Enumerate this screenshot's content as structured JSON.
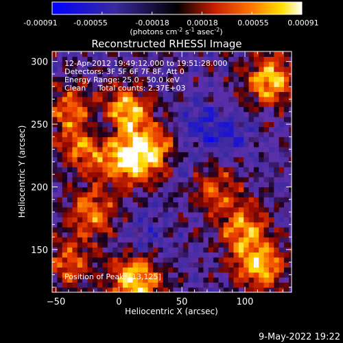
{
  "colorbar": {
    "ticks": [
      "-0.00091",
      "-0.00055",
      "-0.00018",
      "0.00018",
      "0.00055",
      "0.00091"
    ],
    "units_prefix": "(photons cm",
    "units_exp1": "-2",
    "units_mid": " s",
    "units_exp2": "-1",
    "units_mid2": " asec",
    "units_exp3": "-2",
    "units_suffix": ")",
    "min": -0.00091,
    "max": 0.00091
  },
  "plot": {
    "title": "Reconstructed RHESSI Image",
    "xlabel": "Heliocentric X (arcsec)",
    "ylabel": "Heliocentric Y (arcsec)",
    "annotations": [
      "12-Apr-2012 19:49:12.000 to 19:51:28.000",
      "Detectors: 3F 5F 6F 7F 8F, Att 0",
      "Energy Range: 25.0 - 50.0 keV",
      "Clean     Total counts: 2.37E+03"
    ],
    "peak_label": "Position of Peak: [13,125]"
  },
  "footer": {
    "date": "9-May-2022 19:22"
  },
  "chart_data": {
    "type": "heatmap",
    "title": "Reconstructed RHESSI Image",
    "xlabel": "Heliocentric X (arcsec)",
    "ylabel": "Heliocentric Y (arcsec)",
    "xlim": [
      -53,
      137
    ],
    "ylim": [
      116,
      308
    ],
    "xticks": [
      -50,
      0,
      50,
      100
    ],
    "yticks": [
      150,
      200,
      250,
      300
    ],
    "xtick_labels": [
      "−50",
      "0",
      "50",
      "100"
    ],
    "ytick_labels": [
      "150",
      "200",
      "250",
      "300"
    ],
    "value_range": [
      -0.00091,
      0.00091
    ],
    "peak": [
      13,
      125
    ],
    "hot_regions": [
      {
        "x": 5,
        "y": 260,
        "level": 0.75
      },
      {
        "x": 5,
        "y": 222,
        "level": 0.7
      },
      {
        "x": 28,
        "y": 228,
        "level": 0.6
      },
      {
        "x": -28,
        "y": 232,
        "level": 0.55
      },
      {
        "x": -38,
        "y": 262,
        "level": 0.5
      },
      {
        "x": 120,
        "y": 285,
        "level": 0.7
      },
      {
        "x": 98,
        "y": 168,
        "level": 0.55
      },
      {
        "x": 112,
        "y": 138,
        "level": 0.7
      },
      {
        "x": 13,
        "y": 125,
        "level": 0.8
      },
      {
        "x": -20,
        "y": 180,
        "level": 0.55
      },
      {
        "x": 75,
        "y": 200,
        "level": 0.45
      },
      {
        "x": -40,
        "y": 140,
        "level": 0.45
      }
    ],
    "cold_regions": [
      {
        "x": -15,
        "y": 248,
        "level": -0.6
      },
      {
        "x": 65,
        "y": 250,
        "level": -0.45
      },
      {
        "x": 50,
        "y": 215,
        "level": -0.3
      },
      {
        "x": 20,
        "y": 165,
        "level": -0.3
      },
      {
        "x": 88,
        "y": 240,
        "level": -0.35
      }
    ]
  }
}
